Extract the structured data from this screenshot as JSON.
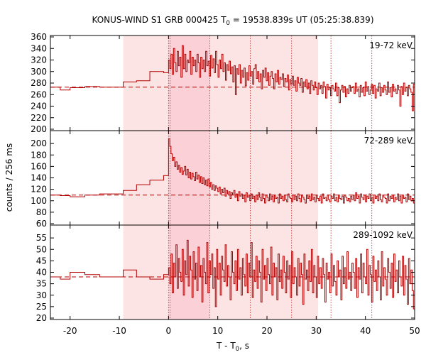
{
  "chart_data": {
    "type": "line",
    "title_main": "KONUS-WIND S1 GRB 000425 T",
    "title_sub": "0",
    "title_rest": " = 19538.839s UT (05:25:38.839)",
    "xlabel_main": "T - T",
    "xlabel_sub": "0",
    "xlabel_rest": ", s",
    "ylabel": "counts / 256 ms",
    "xlim": [
      -24,
      50
    ],
    "xticks": [
      "-20",
      "-10",
      "0",
      "10",
      "20",
      "30",
      "40",
      "50"
    ],
    "shaded_intervals": [
      {
        "from": -9.2,
        "to": 30.4,
        "color": "#fde4e4"
      },
      {
        "from": 0.0,
        "to": 8.4,
        "color": "#fbd0d6"
      }
    ],
    "vertical_markers": [
      0.0,
      0.3,
      8.4,
      16.6,
      25.0,
      33.0,
      41.3
    ],
    "line_color": "#b30000",
    "marker_color": "#c04040",
    "panels": [
      {
        "label": "19-72 keV",
        "ylim": [
          200,
          360
        ],
        "yticks": [
          "200",
          "220",
          "240",
          "260",
          "280",
          "300",
          "320",
          "340",
          "360"
        ],
        "background": 273,
        "segments": [
          [
            -24,
            -22,
            273
          ],
          [
            -22,
            -20,
            268
          ],
          [
            -20,
            -17,
            272
          ],
          [
            -17,
            -14,
            274
          ],
          [
            -14,
            -9.2,
            273
          ],
          [
            -9.2,
            -6.5,
            282
          ],
          [
            -6.5,
            -3.8,
            284
          ],
          [
            -3.8,
            -1.0,
            300
          ],
          [
            -1.0,
            0.0,
            298
          ]
        ],
        "dense": {
          "start": 0.0,
          "step": 0.512,
          "values": [
            320,
            305,
            330,
            295,
            340,
            315,
            300,
            335,
            310,
            325,
            290,
            345,
            305,
            330,
            300,
            320,
            315,
            335,
            295,
            325,
            310,
            320,
            300,
            330,
            315,
            290,
            325,
            305,
            320,
            300,
            335,
            310,
            318,
            292,
            328,
            306,
            322,
            298,
            335,
            312,
            290,
            320,
            305,
            330,
            300,
            315,
            285,
            312,
            302,
            318,
            296,
            308,
            282,
            310,
            260,
            305,
            295,
            312,
            280,
            302,
            290,
            306,
            275,
            298,
            285,
            310,
            292,
            300,
            278,
            305,
            312,
            288,
            300,
            282,
            296,
            270,
            302,
            290,
            306,
            284,
            298,
            276,
            292,
            300,
            288,
            270,
            296,
            282,
            302,
            278,
            290,
            286,
            296,
            274,
            288,
            282,
            294,
            268,
            286,
            278,
            292,
            276,
            284,
            266,
            290,
            280,
            276,
            288,
            264,
            282,
            274,
            286,
            270,
            280,
            262,
            284,
            276,
            268,
            282,
            272,
            260,
            280,
            270,
            276,
            262,
            282,
            274,
            254,
            278,
            268,
            272,
            258,
            276,
            270,
            266,
            280,
            258,
            272,
            246,
            268,
            276,
            264,
            274,
            256,
            270,
            262,
            276,
            266,
            272
          ]
        },
        "dense_tail": [
          274,
          262,
          280,
          266,
          270,
          256,
          276,
          264,
          272,
          258,
          282,
          266,
          274,
          260,
          268,
          278,
          262,
          276,
          254,
          270,
          266,
          280,
          258,
          272,
          264,
          276,
          268,
          260,
          282,
          264,
          272,
          256,
          278,
          266,
          270,
          262,
          276,
          268,
          240,
          274,
          260,
          280,
          266,
          272,
          258,
          276,
          270,
          264,
          232,
          278
        ]
      },
      {
        "label": "72-289 keV",
        "ylim": [
          60,
          220
        ],
        "yticks": [
          "60",
          "80",
          "100",
          "120",
          "140",
          "160",
          "180",
          "200"
        ],
        "background": 110,
        "segments": [
          [
            -24,
            -22,
            110
          ],
          [
            -22,
            -20,
            109
          ],
          [
            -20,
            -17,
            107
          ],
          [
            -17,
            -14,
            110
          ],
          [
            -14,
            -9.2,
            112
          ],
          [
            -9.2,
            -6.5,
            118
          ],
          [
            -6.5,
            -3.8,
            128
          ],
          [
            -3.8,
            -1.0,
            136
          ],
          [
            -1.0,
            0.0,
            144
          ]
        ],
        "dense": {
          "start": 0.0,
          "step": 0.512,
          "values": [
            208,
            195,
            182,
            170,
            176,
            160,
            168,
            155,
            162,
            150,
            158,
            146,
            152,
            160,
            145,
            155,
            140,
            150,
            138,
            148,
            142,
            135,
            150,
            138,
            145,
            132,
            142,
            130,
            140,
            128,
            136,
            126,
            138,
            124,
            132,
            120,
            128,
            118,
            126,
            122,
            116,
            124,
            112,
            120,
            114,
            122,
            108,
            118,
            112,
            116,
            104,
            114,
            110,
            118,
            106,
            112,
            100,
            116,
            108,
            112,
            104,
            110,
            98,
            114,
            106,
            110,
            100,
            112,
            104,
            108,
            98,
            110,
            102,
            114,
            106,
            100,
            112,
            104,
            96,
            110,
            106,
            100,
            112,
            102,
            108,
            98,
            110,
            104,
            106,
            96,
            112,
            104,
            108,
            100,
            110,
            102,
            98,
            112,
            106,
            104,
            98,
            110,
            102,
            108,
            100,
            112,
            104,
            98,
            110,
            106,
            102,
            96,
            110,
            104,
            108,
            100,
            112,
            102,
            106,
            98,
            110,
            104,
            100,
            108,
            96,
            112,
            104,
            106,
            100,
            110,
            102,
            98,
            108,
            104,
            112,
            100,
            106,
            98,
            110,
            104,
            102,
            108,
            96,
            110,
            106,
            100,
            104,
            98,
            108,
            102
          ]
        },
        "dense_tail": [
          110,
          100,
          114,
          104,
          108,
          96,
          112,
          106,
          102,
          110,
          98,
          108,
          104,
          112,
          100,
          106,
          96,
          110,
          104,
          108,
          100,
          112,
          102,
          98,
          110,
          106,
          104,
          96,
          112,
          100,
          108,
          104,
          110,
          98,
          106,
          102,
          112,
          100,
          108,
          96,
          110,
          104,
          106,
          98,
          112,
          102,
          108,
          100,
          104,
          96
        ]
      },
      {
        "label": "289-1092 keV",
        "ylim": [
          20,
          60
        ],
        "yticks": [
          "20",
          "25",
          "30",
          "35",
          "40",
          "45",
          "50",
          "55"
        ],
        "background": 38,
        "segments": [
          [
            -24,
            -22,
            38
          ],
          [
            -22,
            -20,
            37
          ],
          [
            -20,
            -17,
            40
          ],
          [
            -17,
            -14,
            39
          ],
          [
            -14,
            -9.2,
            38
          ],
          [
            -9.2,
            -6.5,
            41
          ],
          [
            -6.5,
            -3.8,
            38
          ],
          [
            -3.8,
            -1.0,
            37
          ],
          [
            -1.0,
            0.0,
            39
          ]
        ],
        "dense": {
          "start": 0.0,
          "step": 0.512,
          "values": [
            42,
            35,
            48,
            31,
            44,
            38,
            52,
            33,
            46,
            40,
            36,
            50,
            30,
            45,
            39,
            54,
            34,
            47,
            41,
            29,
            49,
            37,
            44,
            32,
            51,
            38,
            43,
            27,
            46,
            40,
            35,
            53,
            31,
            45,
            39,
            48,
            33,
            42,
            25,
            50,
            37,
            44,
            30,
            47,
            41,
            36,
            52,
            34,
            43,
            38,
            28,
            49,
            40,
            35,
            45,
            32,
            50,
            37,
            42,
            30,
            46,
            39,
            34,
            48,
            31,
            44,
            38,
            53,
            29,
            41,
            36,
            47,
            33,
            45,
            40,
            27,
            50,
            37,
            43,
            32,
            46,
            39,
            35,
            51,
            30,
            44,
            38,
            42,
            28,
            48,
            36,
            41,
            33,
            47,
            40,
            31,
            45,
            37,
            43,
            29,
            49,
            35,
            42,
            38,
            30,
            46,
            34,
            44,
            39,
            26,
            48,
            37,
            41,
            32,
            45,
            36,
            50,
            31,
            43,
            38,
            29,
            47,
            35,
            42,
            33,
            46,
            39,
            27,
            44,
            37,
            40,
            31,
            48,
            34,
            43,
            36,
            30,
            45,
            38,
            41,
            28,
            47,
            35,
            42,
            33,
            49,
            37,
            40,
            32,
            44
          ]
        },
        "dense_tail": [
          40,
          33,
          46,
          29,
          42,
          37,
          48,
          31,
          44,
          38,
          35,
          50,
          30,
          43,
          39,
          27,
          47,
          36,
          41,
          32,
          45,
          38,
          28,
          49,
          34,
          42,
          37,
          30,
          46,
          40,
          33,
          44,
          29,
          48,
          36,
          41,
          31,
          45,
          38,
          34,
          47,
          30,
          43,
          37,
          26,
          46,
          35,
          41,
          32,
          24
        ]
      }
    ]
  }
}
